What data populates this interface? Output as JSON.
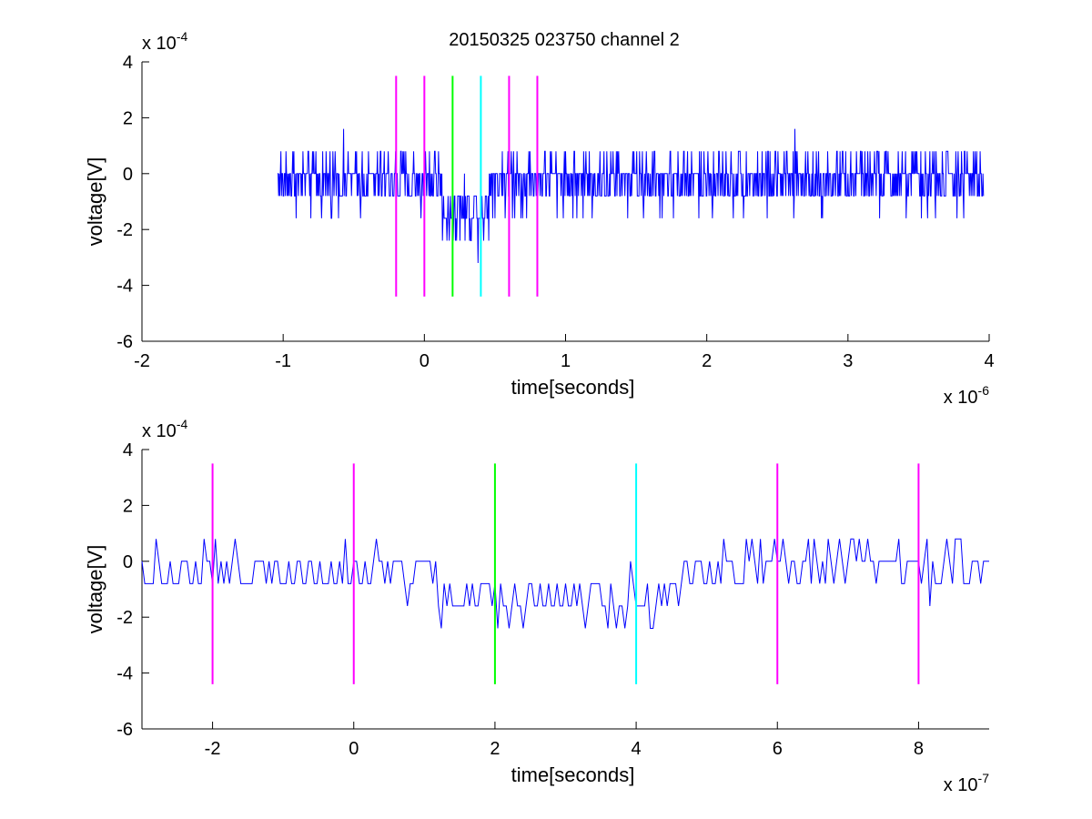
{
  "chart_data": [
    {
      "type": "line",
      "title": "20150325 023750 channel 2",
      "xlabel": "time[seconds]",
      "ylabel": "voltage[V]",
      "xlim": [
        -2e-06,
        4e-06
      ],
      "ylim": [
        -0.0006,
        0.0004
      ],
      "x_scale_label": {
        "base": "x 10",
        "exp": "-6"
      },
      "y_scale_label": {
        "base": "x 10",
        "exp": "-4"
      },
      "xticks": [
        -2e-06,
        -1e-06,
        0,
        1e-06,
        2e-06,
        3e-06,
        4e-06
      ],
      "xtick_labels": [
        "-2",
        "-1",
        "0",
        "1",
        "2",
        "3",
        "4"
      ],
      "yticks": [
        -0.0006,
        -0.0004,
        -0.0002,
        0,
        0.0002,
        0.0004
      ],
      "ytick_labels": [
        "-6",
        "-4",
        "-2",
        "0",
        "2",
        "4"
      ],
      "signal": {
        "x_start": -1.04e-06,
        "x_end": 3.96e-06,
        "quantum": 8e-05,
        "color": "#0000ff"
      },
      "markers": [
        {
          "x": -2e-07,
          "color": "#ff00ff",
          "y_range": [
            -0.00044,
            0.00035
          ]
        },
        {
          "x": 0,
          "color": "#ff00ff",
          "y_range": [
            -0.00044,
            0.00035
          ]
        },
        {
          "x": 2e-07,
          "color": "#00ff00",
          "y_range": [
            -0.00044,
            0.00035
          ]
        },
        {
          "x": 4e-07,
          "color": "#00ffff",
          "y_range": [
            -0.00044,
            0.00035
          ]
        },
        {
          "x": 6e-07,
          "color": "#ff00ff",
          "y_range": [
            -0.00044,
            0.00035
          ]
        },
        {
          "x": 8e-07,
          "color": "#ff00ff",
          "y_range": [
            -0.00044,
            0.00035
          ]
        }
      ]
    },
    {
      "type": "line",
      "xlabel": "time[seconds]",
      "ylabel": "voltage[V]",
      "xlim": [
        -3e-07,
        9e-07
      ],
      "ylim": [
        -0.0006,
        0.0004
      ],
      "x_scale_label": {
        "base": "x 10",
        "exp": "-7"
      },
      "y_scale_label": {
        "base": "x 10",
        "exp": "-4"
      },
      "xticks": [
        -2e-07,
        0,
        2e-07,
        4e-07,
        6e-07,
        8e-07
      ],
      "xtick_labels": [
        "-2",
        "0",
        "2",
        "4",
        "6",
        "8"
      ],
      "yticks": [
        -0.0006,
        -0.0004,
        -0.0002,
        0,
        0.0002,
        0.0004
      ],
      "ytick_labels": [
        "-6",
        "-4",
        "-2",
        "0",
        "2",
        "4"
      ],
      "signal": {
        "x_start": -3e-07,
        "x_end": 9e-07,
        "quantum": 8e-05,
        "color": "#0000ff"
      },
      "markers": [
        {
          "x": -2e-07,
          "color": "#ff00ff",
          "y_range": [
            -0.00044,
            0.00035
          ]
        },
        {
          "x": 0,
          "color": "#ff00ff",
          "y_range": [
            -0.00044,
            0.00035
          ]
        },
        {
          "x": 2e-07,
          "color": "#00ff00",
          "y_range": [
            -0.00044,
            0.00035
          ]
        },
        {
          "x": 4e-07,
          "color": "#00ffff",
          "y_range": [
            -0.00044,
            0.00035
          ]
        },
        {
          "x": 6e-07,
          "color": "#ff00ff",
          "y_range": [
            -0.00044,
            0.00035
          ]
        },
        {
          "x": 8e-07,
          "color": "#ff00ff",
          "y_range": [
            -0.00044,
            0.00035
          ]
        }
      ]
    }
  ]
}
